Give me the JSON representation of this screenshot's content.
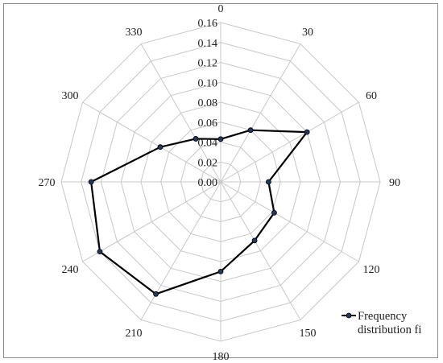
{
  "chart_data": {
    "type": "radar",
    "title": "",
    "angle_labels": [
      "0",
      "30",
      "60",
      "90",
      "120",
      "150",
      "180",
      "210",
      "240",
      "270",
      "300",
      "330"
    ],
    "radial_ticks": [
      "0.00",
      "0.02",
      "0.04",
      "0.06",
      "0.08",
      "0.10",
      "0.12",
      "0.14",
      "0.16"
    ],
    "rlim": [
      0,
      0.16
    ],
    "grid": true,
    "legend_position": "bottom-right",
    "series": [
      {
        "name": "Frequency distribution fi",
        "color": "#000000",
        "marker_color": "#1f3a5f",
        "values": [
          0.043,
          0.06,
          0.1,
          0.048,
          0.062,
          0.068,
          0.09,
          0.13,
          0.14,
          0.13,
          0.07,
          0.05
        ]
      }
    ],
    "legend_lines": [
      "Frequency",
      "distribution fi"
    ]
  }
}
